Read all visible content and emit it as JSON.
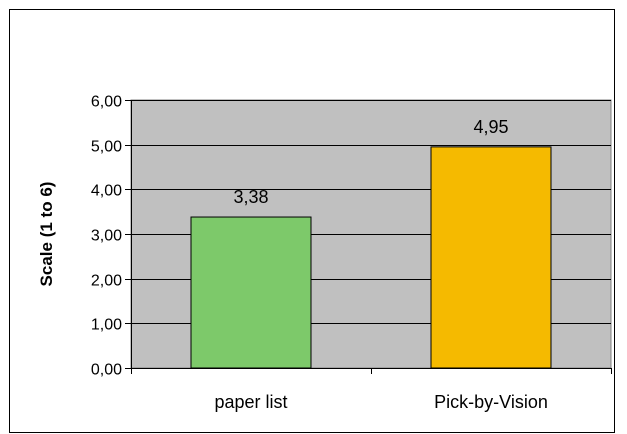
{
  "chart_data": {
    "type": "bar",
    "categories": [
      "paper list",
      "Pick-by-Vision"
    ],
    "values": [
      3.38,
      4.95
    ],
    "data_labels": [
      "3,38",
      "4,95"
    ],
    "bar_colors": [
      "#7DC96A",
      "#F5BA00"
    ],
    "xlabel": "",
    "ylabel": "Scale (1 to 6)",
    "ylim": [
      0,
      6
    ],
    "yticks": [
      0,
      1,
      2,
      3,
      4,
      5,
      6
    ],
    "ytick_labels": [
      "0,00",
      "1,00",
      "2,00",
      "3,00",
      "4,00",
      "5,00",
      "6,00"
    ],
    "plot_background": "#C0C0C0",
    "grid": true,
    "legend": "none"
  }
}
